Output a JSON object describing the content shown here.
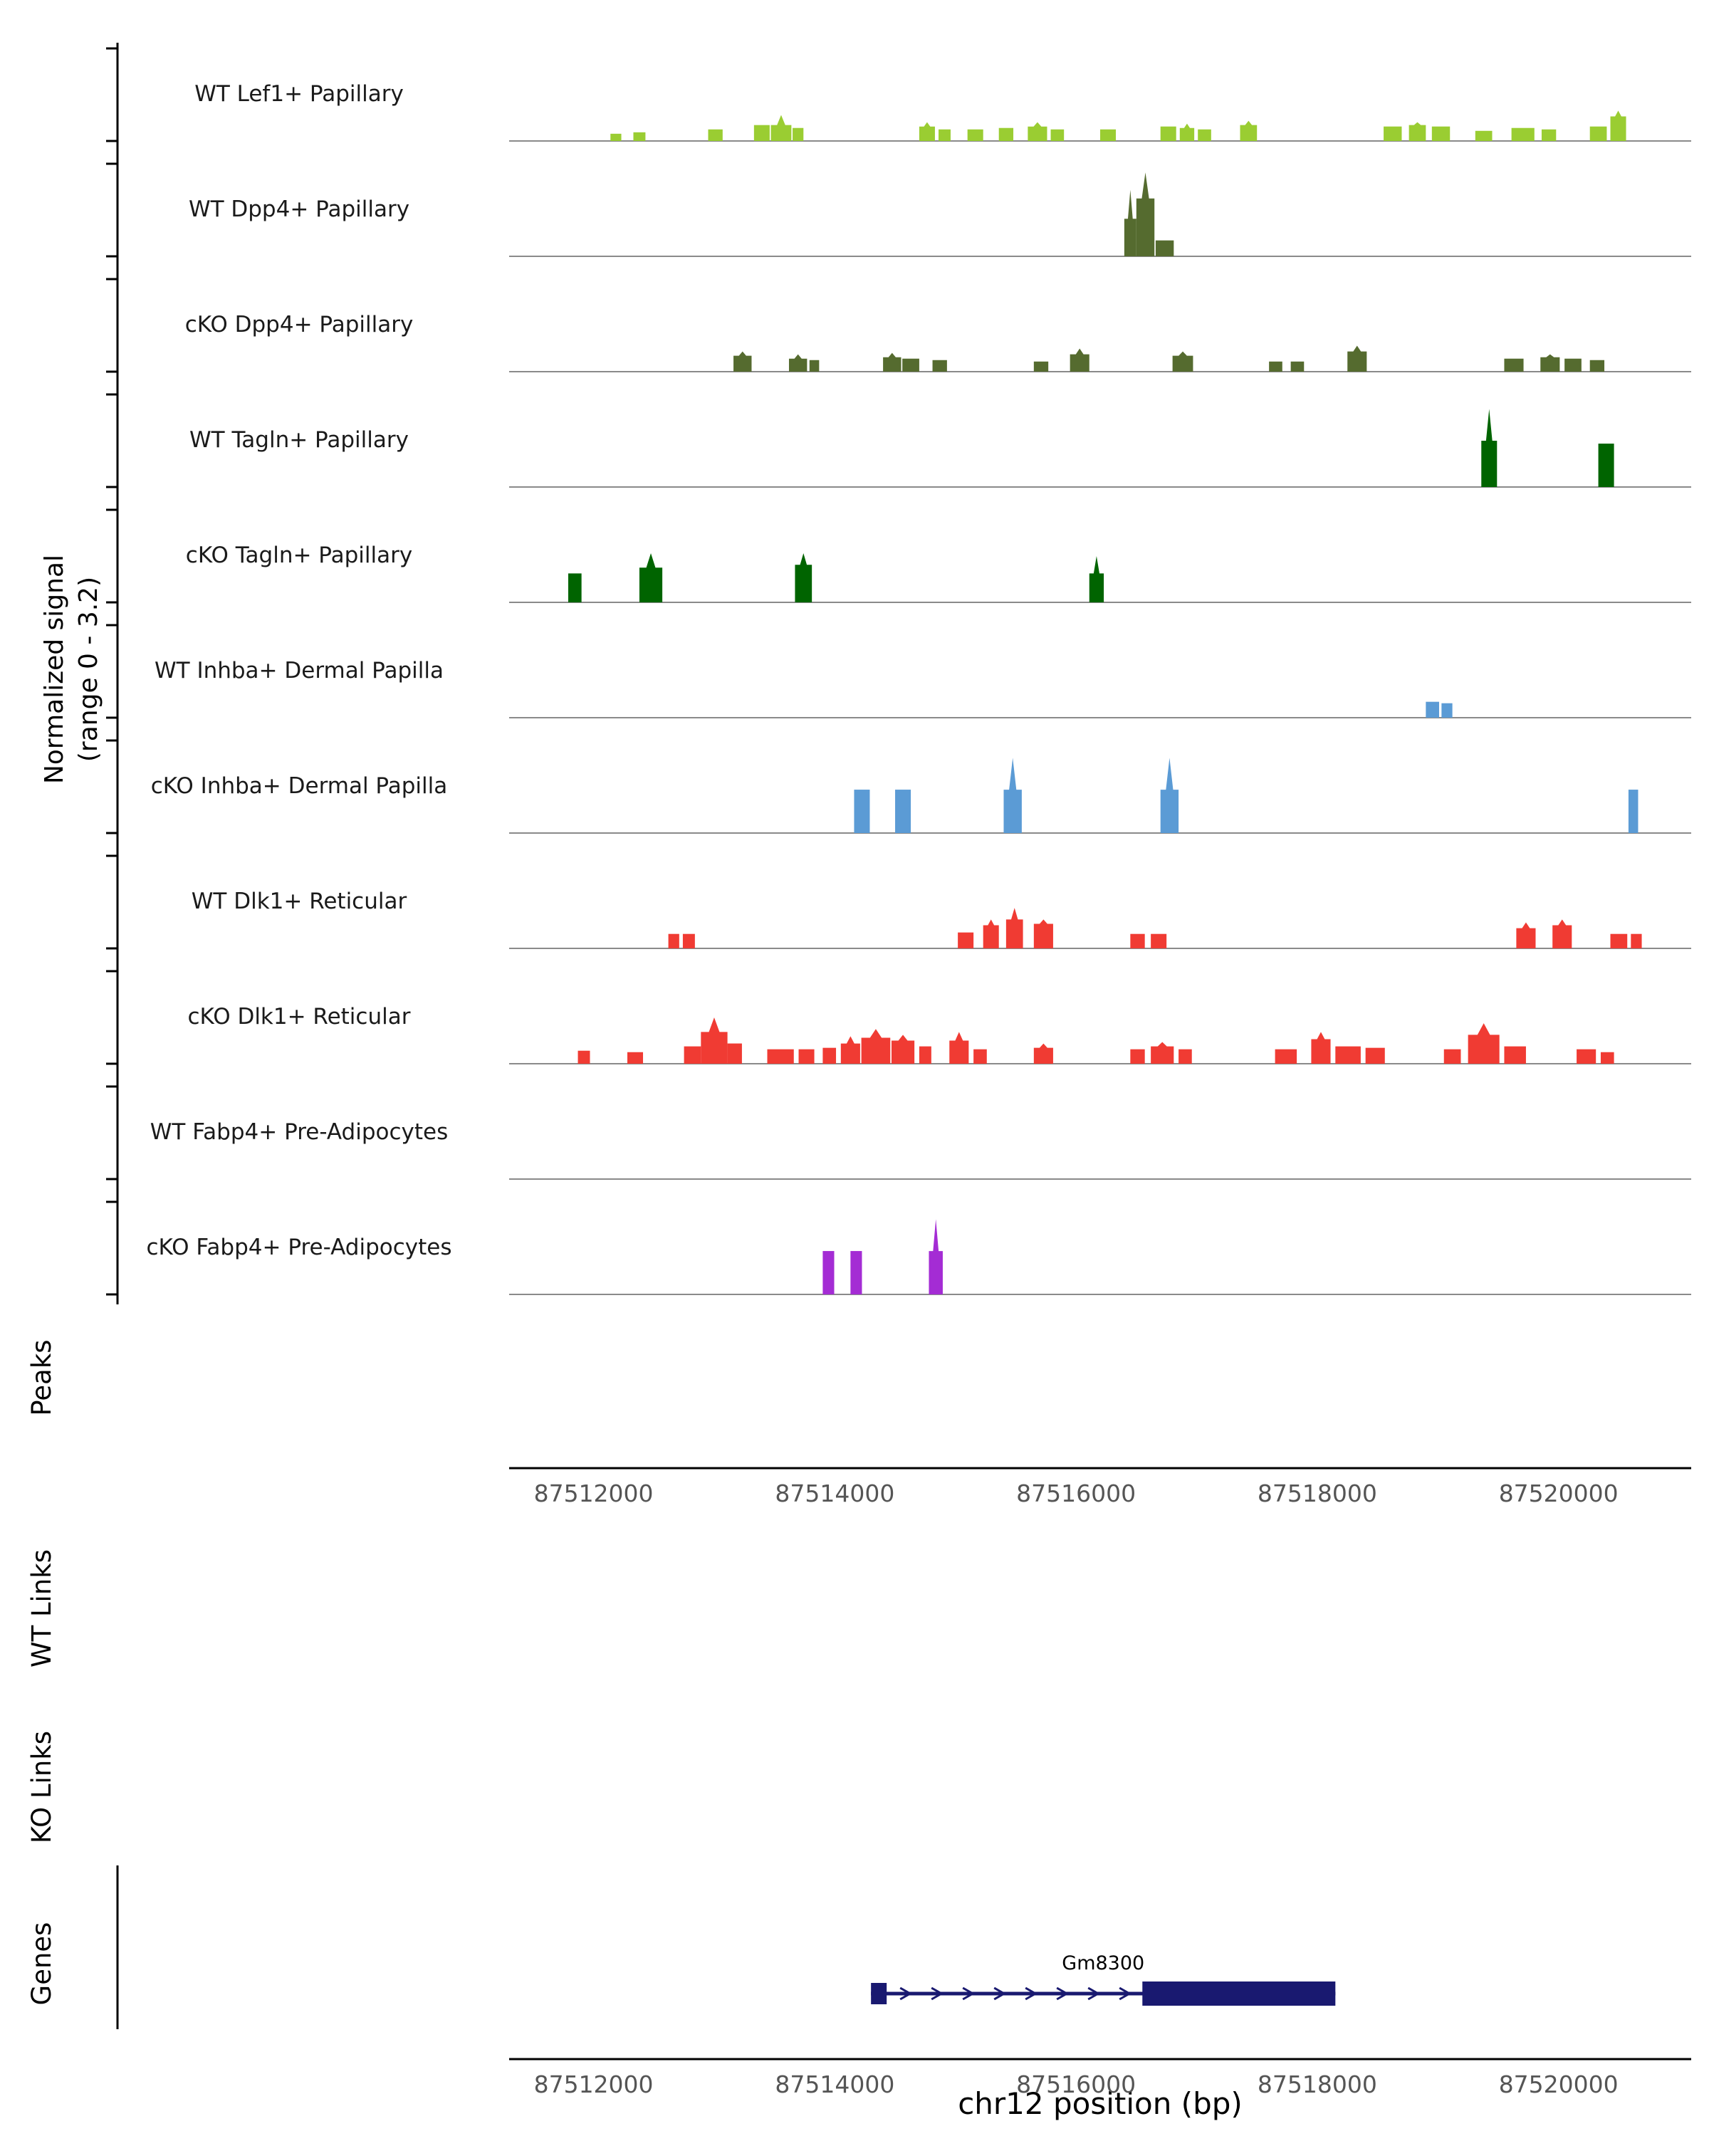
{
  "y_axis": {
    "line1": "Normalized signal",
    "line2": "(range 0 - 3.2)"
  },
  "sections": {
    "peaks": "Peaks",
    "wt_links": "WT Links",
    "ko_links": "KO Links",
    "genes": "Genes"
  },
  "chart_data": {
    "type": "area",
    "region": {
      "chrom": "chr12",
      "start": 87511300,
      "end": 87521100
    },
    "x_axis": {
      "ticks": [
        87512000,
        87514000,
        87516000,
        87518000,
        87520000
      ],
      "label": "chr12 position (bp)"
    },
    "y_range": [
      0,
      3.2
    ],
    "tracks": [
      {
        "label": "WT Lef1+ Papillary",
        "color": "#9ACD32",
        "peaks": [
          [
            87512140,
            87512230,
            0.25
          ],
          [
            87512330,
            87512430,
            0.3
          ],
          [
            87512950,
            87513070,
            0.4
          ],
          [
            87513330,
            87513460,
            0.55
          ],
          [
            87513470,
            87513640,
            0.55,
            0.9
          ],
          [
            87513650,
            87513740,
            0.45
          ],
          [
            87514700,
            87514830,
            0.5,
            0.65
          ],
          [
            87514860,
            87514960,
            0.4
          ],
          [
            87515100,
            87515230,
            0.4
          ],
          [
            87515360,
            87515480,
            0.45
          ],
          [
            87515600,
            87515760,
            0.5,
            0.65
          ],
          [
            87515790,
            87515900,
            0.4
          ],
          [
            87516200,
            87516330,
            0.4
          ],
          [
            87516700,
            87516830,
            0.5
          ],
          [
            87516860,
            87516980,
            0.45,
            0.6
          ],
          [
            87517010,
            87517120,
            0.4
          ],
          [
            87517360,
            87517500,
            0.55,
            0.7
          ],
          [
            87518550,
            87518700,
            0.5
          ],
          [
            87518760,
            87518900,
            0.55,
            0.65
          ],
          [
            87518950,
            87519100,
            0.5
          ],
          [
            87519310,
            87519450,
            0.35
          ],
          [
            87519610,
            87519800,
            0.45
          ],
          [
            87519860,
            87519980,
            0.4
          ],
          [
            87520260,
            87520400,
            0.5
          ],
          [
            87520430,
            87520560,
            0.85,
            1.05
          ]
        ]
      },
      {
        "label": "WT Dpp4+ Papillary",
        "color": "#556B2F",
        "peaks": [
          [
            87516400,
            87516500,
            1.3,
            2.3
          ],
          [
            87516500,
            87516650,
            2.0,
            2.9
          ],
          [
            87516660,
            87516810,
            0.55
          ]
        ]
      },
      {
        "label": "cKO Dpp4+ Papillary",
        "color": "#556B2F",
        "peaks": [
          [
            87513160,
            87513310,
            0.55,
            0.7
          ],
          [
            87513620,
            87513770,
            0.45,
            0.6
          ],
          [
            87513790,
            87513870,
            0.4
          ],
          [
            87514400,
            87514550,
            0.5,
            0.65
          ],
          [
            87514560,
            87514700,
            0.45
          ],
          [
            87514810,
            87514930,
            0.4
          ],
          [
            87515650,
            87515770,
            0.35
          ],
          [
            87515950,
            87516110,
            0.6,
            0.8
          ],
          [
            87516800,
            87516970,
            0.55,
            0.7
          ],
          [
            87517600,
            87517710,
            0.35
          ],
          [
            87517780,
            87517890,
            0.35
          ],
          [
            87518250,
            87518410,
            0.7,
            0.9
          ],
          [
            87519550,
            87519710,
            0.45
          ],
          [
            87519850,
            87520010,
            0.5,
            0.6
          ],
          [
            87520050,
            87520190,
            0.45
          ],
          [
            87520260,
            87520380,
            0.4
          ]
        ]
      },
      {
        "label": "WT Tagln+ Papillary",
        "color": "#006400",
        "peaks": [
          [
            87519360,
            87519490,
            1.6,
            2.7
          ],
          [
            87520330,
            87520460,
            1.5
          ]
        ]
      },
      {
        "label": "cKO Tagln+ Papillary",
        "color": "#006400",
        "peaks": [
          [
            87511790,
            87511900,
            1.0
          ],
          [
            87512380,
            87512570,
            1.2,
            1.7
          ],
          [
            87513670,
            87513810,
            1.3,
            1.7
          ],
          [
            87516110,
            87516230,
            1.0,
            1.6
          ]
        ]
      },
      {
        "label": "WT Inhba+ Dermal Papilla",
        "color": "#5B9BD5",
        "peaks": [
          [
            87518900,
            87519010,
            0.55
          ],
          [
            87519030,
            87519120,
            0.5
          ]
        ]
      },
      {
        "label": "cKO Inhba+ Dermal Papilla",
        "color": "#5B9BD5",
        "peaks": [
          [
            87514160,
            87514290,
            1.5
          ],
          [
            87514500,
            87514630,
            1.5
          ],
          [
            87515400,
            87515550,
            1.5,
            2.6
          ],
          [
            87516700,
            87516850,
            1.5,
            2.6
          ],
          [
            87520580,
            87520660,
            1.5
          ]
        ]
      },
      {
        "label": "WT Dlk1+ Reticular",
        "color": "#F03B33",
        "peaks": [
          [
            87512620,
            87512710,
            0.5
          ],
          [
            87512740,
            87512840,
            0.5
          ],
          [
            87515020,
            87515150,
            0.55
          ],
          [
            87515230,
            87515360,
            0.8,
            1.0
          ],
          [
            87515420,
            87515560,
            1.0,
            1.4
          ],
          [
            87515650,
            87515810,
            0.85,
            1.0
          ],
          [
            87516450,
            87516570,
            0.5
          ],
          [
            87516620,
            87516750,
            0.5
          ],
          [
            87519650,
            87519810,
            0.7,
            0.9
          ],
          [
            87519950,
            87520110,
            0.8,
            1.0
          ],
          [
            87520430,
            87520570,
            0.5
          ],
          [
            87520600,
            87520690,
            0.5
          ]
        ]
      },
      {
        "label": "cKO Dlk1+ Reticular",
        "color": "#F03B33",
        "peaks": [
          [
            87511870,
            87511970,
            0.45
          ],
          [
            87512280,
            87512410,
            0.4
          ],
          [
            87512750,
            87512890,
            0.6
          ],
          [
            87512890,
            87513110,
            1.1,
            1.6
          ],
          [
            87513110,
            87513230,
            0.7
          ],
          [
            87513440,
            87513660,
            0.5
          ],
          [
            87513700,
            87513830,
            0.5
          ],
          [
            87513900,
            87514010,
            0.55
          ],
          [
            87514050,
            87514210,
            0.7,
            0.95
          ],
          [
            87514220,
            87514460,
            0.9,
            1.2
          ],
          [
            87514470,
            87514660,
            0.8,
            1.0
          ],
          [
            87514700,
            87514800,
            0.6
          ],
          [
            87514950,
            87515110,
            0.8,
            1.1
          ],
          [
            87515150,
            87515260,
            0.5
          ],
          [
            87515650,
            87515810,
            0.55,
            0.7
          ],
          [
            87516450,
            87516570,
            0.5
          ],
          [
            87516620,
            87516810,
            0.6,
            0.75
          ],
          [
            87516850,
            87516960,
            0.5
          ],
          [
            87517650,
            87517830,
            0.5
          ],
          [
            87517950,
            87518110,
            0.85,
            1.1
          ],
          [
            87518150,
            87518360,
            0.6
          ],
          [
            87518400,
            87518560,
            0.55
          ],
          [
            87519050,
            87519190,
            0.5
          ],
          [
            87519250,
            87519510,
            1.0,
            1.4
          ],
          [
            87519550,
            87519730,
            0.6
          ],
          [
            87520150,
            87520310,
            0.5
          ],
          [
            87520350,
            87520460,
            0.4
          ]
        ]
      },
      {
        "label": "WT Fabp4+ Pre-Adipocytes",
        "color": "#A42CD4",
        "peaks": []
      },
      {
        "label": "cKO Fabp4+ Pre-Adipocytes",
        "color": "#A42CD4",
        "peaks": [
          [
            87513900,
            87513995,
            1.5
          ],
          [
            87514130,
            87514225,
            1.5
          ],
          [
            87514780,
            87514895,
            1.5,
            2.6
          ]
        ]
      }
    ],
    "gene": {
      "name": "Gm8300",
      "color": "#191970",
      "start": 87514300,
      "end": 87518150,
      "thin_exon_end": 87514430,
      "thick_start": 87516550,
      "thick_end": 87518150,
      "strand": "+"
    }
  }
}
